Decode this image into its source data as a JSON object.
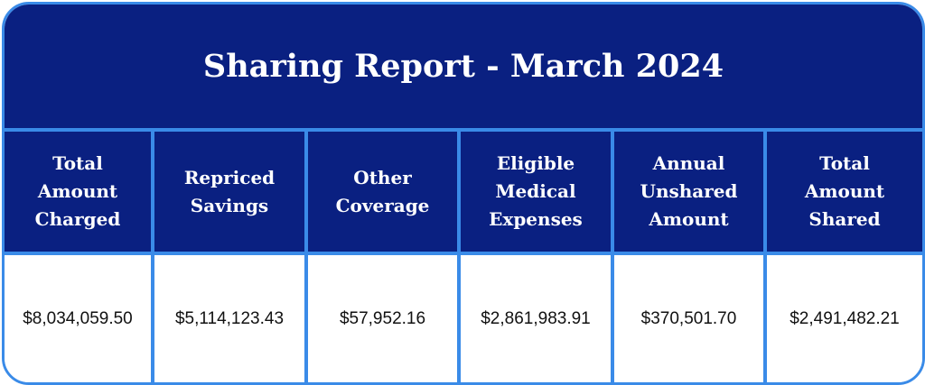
{
  "title": "Sharing Report - March 2024",
  "colors": {
    "header_bg": "#0a2081",
    "border": "#3a8be8",
    "header_text": "#ffffff",
    "value_text": "#111111"
  },
  "columns": [
    {
      "header": "Total\nAmount\nCharged",
      "value": "$8,034,059.50"
    },
    {
      "header": "Repriced\nSavings",
      "value": "$5,114,123.43"
    },
    {
      "header": "Other\nCoverage",
      "value": "$57,952.16"
    },
    {
      "header": "Eligible\nMedical\nExpenses",
      "value": "$2,861,983.91"
    },
    {
      "header": "Annual\nUnshared\nAmount",
      "value": "$370,501.70"
    },
    {
      "header": "Total\nAmount\nShared",
      "value": "$2,491,482.21"
    }
  ]
}
